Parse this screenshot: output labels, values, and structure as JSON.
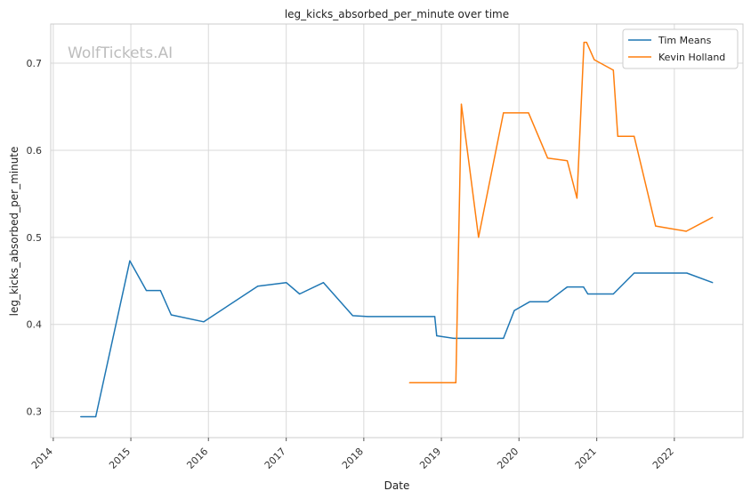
{
  "watermark": "WolfTickets.AI",
  "chart_data": {
    "type": "line",
    "title": "leg_kicks_absorbed_per_minute over time",
    "xlabel": "Date",
    "ylabel": "leg_kicks_absorbed_per_minute",
    "xlim": [
      "2013-12-20",
      "2022-11-20"
    ],
    "ylim": [
      0.27,
      0.745
    ],
    "x_ticks": [
      "2014",
      "2015",
      "2016",
      "2017",
      "2018",
      "2019",
      "2020",
      "2021",
      "2022"
    ],
    "y_ticks": [
      "0.3",
      "0.4",
      "0.5",
      "0.6",
      "0.7"
    ],
    "grid": true,
    "legend_position": "top-right",
    "series": [
      {
        "name": "Tim Means",
        "color": "#1f77b4",
        "x": [
          "2014-05-10",
          "2014-07-20",
          "2014-12-27",
          "2015-03-15",
          "2015-05-20",
          "2015-07-10",
          "2015-12-10",
          "2016-08-20",
          "2017-01-01",
          "2017-03-05",
          "2017-06-25",
          "2017-11-10",
          "2018-01-20",
          "2018-12-01",
          "2018-12-10",
          "2019-03-01",
          "2019-10-20",
          "2019-12-10",
          "2020-02-20",
          "2020-05-15",
          "2020-08-15",
          "2020-10-31",
          "2020-11-20",
          "2021-03-20",
          "2021-06-26",
          "2022-03-01",
          "2022-06-30"
        ],
        "y": [
          0.294,
          0.294,
          0.473,
          0.439,
          0.439,
          0.411,
          0.403,
          0.444,
          0.448,
          0.435,
          0.448,
          0.41,
          0.409,
          0.409,
          0.387,
          0.384,
          0.384,
          0.416,
          0.426,
          0.426,
          0.443,
          0.443,
          0.435,
          0.435,
          0.459,
          0.459,
          0.448
        ]
      },
      {
        "name": "Kevin Holland",
        "color": "#ff7f0e",
        "x": [
          "2018-08-04",
          "2019-03-10",
          "2019-04-05",
          "2019-06-25",
          "2019-10-20",
          "2020-02-15",
          "2020-05-15",
          "2020-08-15",
          "2020-09-30",
          "2020-11-02",
          "2020-11-14",
          "2020-12-20",
          "2021-03-20",
          "2021-04-10",
          "2021-06-26",
          "2021-10-05",
          "2022-02-26",
          "2022-06-30"
        ],
        "y": [
          0.333,
          0.333,
          0.653,
          0.5,
          0.643,
          0.643,
          0.591,
          0.588,
          0.545,
          0.724,
          0.724,
          0.704,
          0.692,
          0.616,
          0.616,
          0.513,
          0.507,
          0.523
        ]
      }
    ]
  }
}
